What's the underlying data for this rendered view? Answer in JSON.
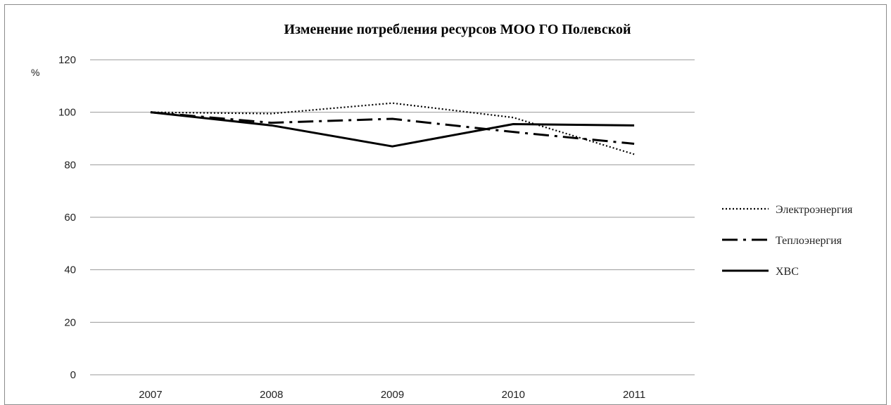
{
  "chart_data": {
    "type": "line",
    "title": "Изменение потребления ресурсов МОО ГО Полевской",
    "ylabel": "%",
    "xlabel": "",
    "categories": [
      "2007",
      "2008",
      "2009",
      "2010",
      "2011"
    ],
    "ylim": [
      0,
      120
    ],
    "yticks": [
      "0",
      "20",
      "40",
      "60",
      "80",
      "100",
      "120"
    ],
    "grid": true,
    "legend_position": "right",
    "series": [
      {
        "name": "Электроэнергия",
        "values": [
          100,
          99.5,
          103.5,
          98,
          84
        ],
        "style": "dotted",
        "color": "#000000"
      },
      {
        "name": "Теплоэнергия",
        "values": [
          100,
          96,
          97.5,
          92.5,
          88
        ],
        "style": "dash-dot",
        "color": "#000000"
      },
      {
        "name": "ХВС",
        "values": [
          100,
          95,
          87,
          95.5,
          95
        ],
        "style": "solid",
        "color": "#000000"
      }
    ]
  }
}
